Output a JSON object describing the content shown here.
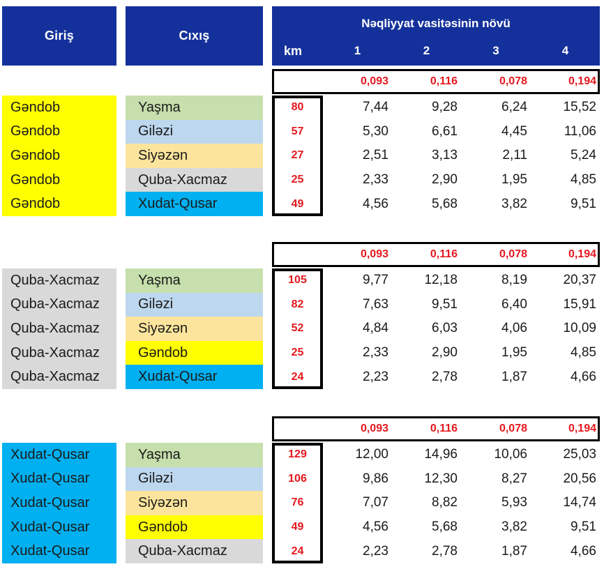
{
  "header": {
    "giris": "Giriş",
    "cixis": "Cıxış",
    "vehicle_type": "Nəqliyyat vasitəsinin növü",
    "km": "km",
    "type_cols": [
      "1",
      "2",
      "3",
      "4"
    ]
  },
  "coefficients": [
    "0,093",
    "0,116",
    "0,078",
    "0,194"
  ],
  "colors": {
    "header_blue": "#14319B",
    "red": "#E4181E",
    "ink": "#1a1a1a",
    "yellow": "#FFFF00",
    "green": "#C6DFAC",
    "blue": "#BDD7EE",
    "tan": "#FCE49C",
    "gray": "#D9D9D9",
    "cyan": "#00B0F0"
  },
  "sections": [
    {
      "entry": "Gəndob",
      "entry_color": "yellow",
      "rows": [
        {
          "exit": "Yaşma",
          "exit_color": "green",
          "km": "80",
          "values": [
            "7,44",
            "9,28",
            "6,24",
            "15,52"
          ]
        },
        {
          "exit": "Giləzi",
          "exit_color": "blue",
          "km": "57",
          "values": [
            "5,30",
            "6,61",
            "4,45",
            "11,06"
          ]
        },
        {
          "exit": "Siyəzən",
          "exit_color": "tan",
          "km": "27",
          "values": [
            "2,51",
            "3,13",
            "2,11",
            "5,24"
          ]
        },
        {
          "exit": "Quba-Xacmaz",
          "exit_color": "gray",
          "km": "25",
          "values": [
            "2,33",
            "2,90",
            "1,95",
            "4,85"
          ]
        },
        {
          "exit": "Xudat-Qusar",
          "exit_color": "cyan",
          "km": "49",
          "values": [
            "4,56",
            "5,68",
            "3,82",
            "9,51"
          ]
        }
      ]
    },
    {
      "entry": "Quba-Xacmaz",
      "entry_color": "gray",
      "rows": [
        {
          "exit": "Yaşma",
          "exit_color": "green",
          "km": "105",
          "values": [
            "9,77",
            "12,18",
            "8,19",
            "20,37"
          ]
        },
        {
          "exit": "Giləzi",
          "exit_color": "blue",
          "km": "82",
          "values": [
            "7,63",
            "9,51",
            "6,40",
            "15,91"
          ]
        },
        {
          "exit": "Siyəzən",
          "exit_color": "tan",
          "km": "52",
          "values": [
            "4,84",
            "6,03",
            "4,06",
            "10,09"
          ]
        },
        {
          "exit": "Gəndob",
          "exit_color": "yellow",
          "km": "25",
          "values": [
            "2,33",
            "2,90",
            "1,95",
            "4,85"
          ]
        },
        {
          "exit": "Xudat-Qusar",
          "exit_color": "cyan",
          "km": "24",
          "values": [
            "2,23",
            "2,78",
            "1,87",
            "4,66"
          ]
        }
      ]
    },
    {
      "entry": "Xudat-Qusar",
      "entry_color": "cyan",
      "rows": [
        {
          "exit": "Yaşma",
          "exit_color": "green",
          "km": "129",
          "values": [
            "12,00",
            "14,96",
            "10,06",
            "25,03"
          ]
        },
        {
          "exit": "Giləzi",
          "exit_color": "blue",
          "km": "106",
          "values": [
            "9,86",
            "12,30",
            "8,27",
            "20,56"
          ]
        },
        {
          "exit": "Siyəzən",
          "exit_color": "tan",
          "km": "76",
          "values": [
            "7,07",
            "8,82",
            "5,93",
            "14,74"
          ]
        },
        {
          "exit": "Gəndob",
          "exit_color": "yellow",
          "km": "49",
          "values": [
            "4,56",
            "5,68",
            "3,82",
            "9,51"
          ]
        },
        {
          "exit": "Quba-Xacmaz",
          "exit_color": "gray",
          "km": "24",
          "values": [
            "2,23",
            "2,78",
            "1,87",
            "4,66"
          ]
        }
      ]
    }
  ]
}
